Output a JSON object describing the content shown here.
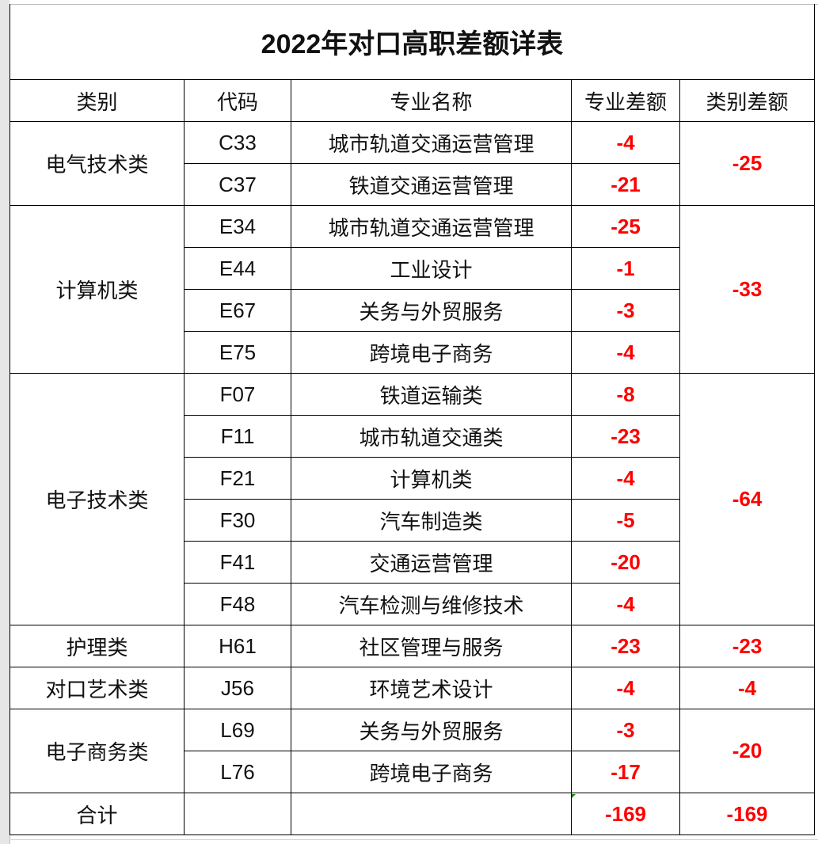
{
  "title": "2022年对口高职差额详表",
  "headers": [
    "类别",
    "代码",
    "专业名称",
    "专业差额",
    "类别差额"
  ],
  "groups": [
    {
      "category": "电气技术类",
      "total": "-25",
      "items": [
        {
          "code": "C33",
          "major": "城市轨道交通运营管理",
          "diff": "-4"
        },
        {
          "code": "C37",
          "major": "铁道交通运营管理",
          "diff": "-21"
        }
      ]
    },
    {
      "category": "计算机类",
      "total": "-33",
      "items": [
        {
          "code": "E34",
          "major": "城市轨道交通运营管理",
          "diff": "-25"
        },
        {
          "code": "E44",
          "major": "工业设计",
          "diff": "-1"
        },
        {
          "code": "E67",
          "major": "关务与外贸服务",
          "diff": "-3"
        },
        {
          "code": "E75",
          "major": "跨境电子商务",
          "diff": "-4"
        }
      ]
    },
    {
      "category": "电子技术类",
      "total": "-64",
      "items": [
        {
          "code": "F07",
          "major": "铁道运输类",
          "diff": "-8"
        },
        {
          "code": "F11",
          "major": "城市轨道交通类",
          "diff": "-23"
        },
        {
          "code": "F21",
          "major": "计算机类",
          "diff": "-4"
        },
        {
          "code": "F30",
          "major": "汽车制造类",
          "diff": "-5"
        },
        {
          "code": "F41",
          "major": "交通运营管理",
          "diff": "-20"
        },
        {
          "code": "F48",
          "major": "汽车检测与维修技术",
          "diff": "-4"
        }
      ]
    },
    {
      "category": "护理类",
      "total": "-23",
      "items": [
        {
          "code": "H61",
          "major": "社区管理与服务",
          "diff": "-23"
        }
      ]
    },
    {
      "category": "对口艺术类",
      "total": "-4",
      "items": [
        {
          "code": "J56",
          "major": "环境艺术设计",
          "diff": "-4"
        }
      ]
    },
    {
      "category": "电子商务类",
      "total": "-20",
      "items": [
        {
          "code": "L69",
          "major": "关务与外贸服务",
          "diff": "-3"
        },
        {
          "code": "L76",
          "major": "跨境电子商务",
          "diff": "-17"
        }
      ]
    }
  ],
  "summary": {
    "label": "合计",
    "code": "",
    "major": "",
    "diff": "-169",
    "total": "-169"
  },
  "colors": {
    "negative": "#ff0000",
    "text": "#111111"
  }
}
